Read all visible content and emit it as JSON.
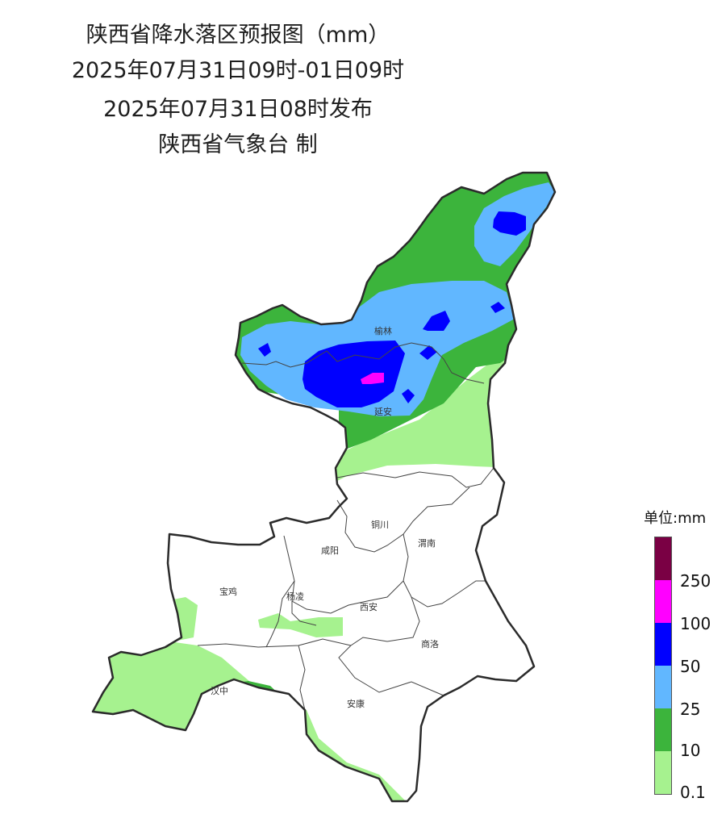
{
  "title": {
    "line1": "陕西省降水落区预报图（mm）",
    "line2": "2025年07月31日09时-01日09时",
    "line3": "2025年07月31日08时发布",
    "line4": "陕西省气象台 制"
  },
  "cities": [
    "榆林",
    "延安",
    "铜川",
    "渭南",
    "咸阳",
    "宝鸡",
    "杨凌",
    "西安",
    "商洛",
    "汉中",
    "安康"
  ],
  "legend": {
    "unit": "单位:mm",
    "levels": [
      {
        "color": "#7a0044",
        "label": ""
      },
      {
        "color": "#ff00ff",
        "label": "250"
      },
      {
        "color": "#0000ff",
        "label": "100"
      },
      {
        "color": "#61b7ff",
        "label": "50"
      },
      {
        "color": "#3cb43c",
        "label": "25"
      },
      {
        "color": "#a6f28f",
        "label": "10"
      },
      {
        "color": "",
        "label": "0.1"
      }
    ]
  }
}
